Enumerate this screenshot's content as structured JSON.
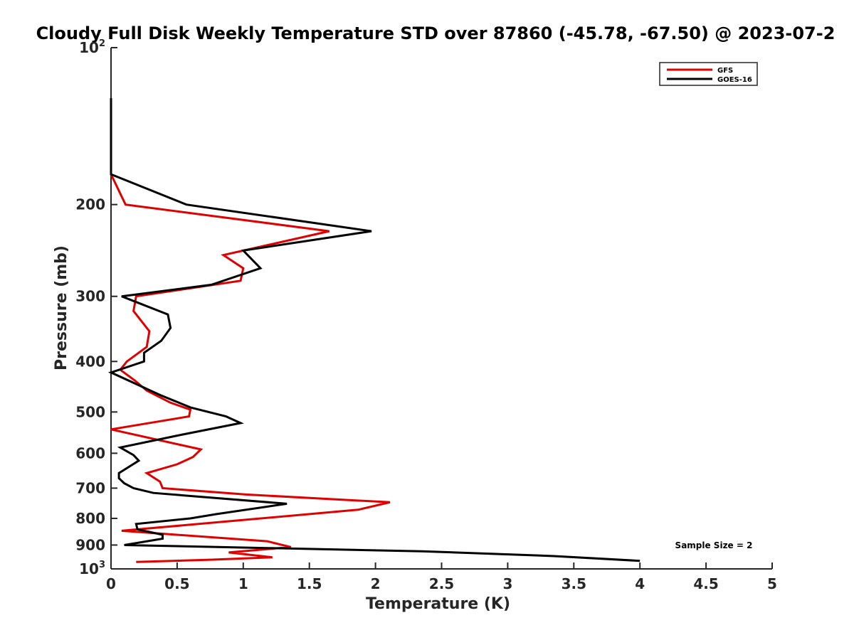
{
  "chart_data": {
    "type": "line",
    "title": "Cloudy Full Disk Weekly Temperature STD over 87860 (-45.78, -67.50) @ 2023-07-2",
    "xlabel": "Temperature (K)",
    "ylabel": "Pressure (mb)",
    "xlim": [
      0,
      5
    ],
    "ylim": [
      100,
      1000
    ],
    "yscale": "log",
    "yreversed": true,
    "xticks": [
      "0",
      "0.5",
      "1",
      "1.5",
      "2",
      "2.5",
      "3",
      "3.5",
      "4",
      "4.5",
      "5"
    ],
    "yticks": [
      {
        "value": 100,
        "base": "10",
        "exp": "2"
      },
      {
        "value": 200,
        "label": "200"
      },
      {
        "value": 300,
        "label": "300"
      },
      {
        "value": 400,
        "label": "400"
      },
      {
        "value": 500,
        "label": "500"
      },
      {
        "value": 600,
        "label": "600"
      },
      {
        "value": 700,
        "label": "700"
      },
      {
        "value": 800,
        "label": "800"
      },
      {
        "value": 900,
        "label": "900"
      },
      {
        "value": 1000,
        "base": "10",
        "exp": "3"
      }
    ],
    "legend_position": "top-right",
    "annotation": "Sample Size = 2",
    "series": [
      {
        "name": "GFS",
        "color": "#e00000",
        "points": [
          [
            0,
            125
          ],
          [
            0,
            175
          ],
          [
            0.11,
            200
          ],
          [
            1.65,
            225
          ],
          [
            0.85,
            250
          ],
          [
            1.0,
            265
          ],
          [
            0.98,
            280
          ],
          [
            0.19,
            300
          ],
          [
            0.17,
            320
          ],
          [
            0.29,
            350
          ],
          [
            0.27,
            375
          ],
          [
            0.12,
            400
          ],
          [
            0.07,
            415
          ],
          [
            0.18,
            435
          ],
          [
            0.27,
            455
          ],
          [
            0.45,
            480
          ],
          [
            0.6,
            495
          ],
          [
            0.59,
            510
          ],
          [
            0.0,
            540
          ],
          [
            0.68,
            590
          ],
          [
            0.62,
            610
          ],
          [
            0.5,
            630
          ],
          [
            0.27,
            655
          ],
          [
            0.37,
            680
          ],
          [
            0.39,
            700
          ],
          [
            1.02,
            720
          ],
          [
            2.11,
            745
          ],
          [
            1.87,
            770
          ],
          [
            1.02,
            805
          ],
          [
            0.08,
            845
          ],
          [
            1.18,
            885
          ],
          [
            1.36,
            908
          ],
          [
            0.89,
            930
          ],
          [
            1.22,
            950
          ],
          [
            0.77,
            960
          ],
          [
            0.19,
            970
          ]
        ]
      },
      {
        "name": "GOES-16",
        "color": "#000000",
        "points": [
          [
            0,
            125
          ],
          [
            0,
            175
          ],
          [
            0.57,
            200
          ],
          [
            1.97,
            225
          ],
          [
            1.0,
            245
          ],
          [
            1.13,
            265
          ],
          [
            0.76,
            285
          ],
          [
            0.08,
            300
          ],
          [
            0.43,
            325
          ],
          [
            0.45,
            345
          ],
          [
            0.38,
            365
          ],
          [
            0.25,
            385
          ],
          [
            0.25,
            400
          ],
          [
            0.0,
            420
          ],
          [
            0.38,
            465
          ],
          [
            0.6,
            490
          ],
          [
            0.87,
            510
          ],
          [
            0.98,
            525
          ],
          [
            0.5,
            555
          ],
          [
            0.07,
            585
          ],
          [
            0.17,
            605
          ],
          [
            0.21,
            620
          ],
          [
            0.06,
            655
          ],
          [
            0.06,
            670
          ],
          [
            0.1,
            685
          ],
          [
            0.17,
            700
          ],
          [
            0.32,
            715
          ],
          [
            1.33,
            750
          ],
          [
            0.8,
            785
          ],
          [
            0.6,
            800
          ],
          [
            0.19,
            820
          ],
          [
            0.2,
            840
          ],
          [
            0.39,
            860
          ],
          [
            0.39,
            875
          ],
          [
            0.1,
            900
          ],
          [
            2.35,
            925
          ],
          [
            3.35,
            945
          ],
          [
            4.0,
            965
          ]
        ]
      }
    ]
  }
}
